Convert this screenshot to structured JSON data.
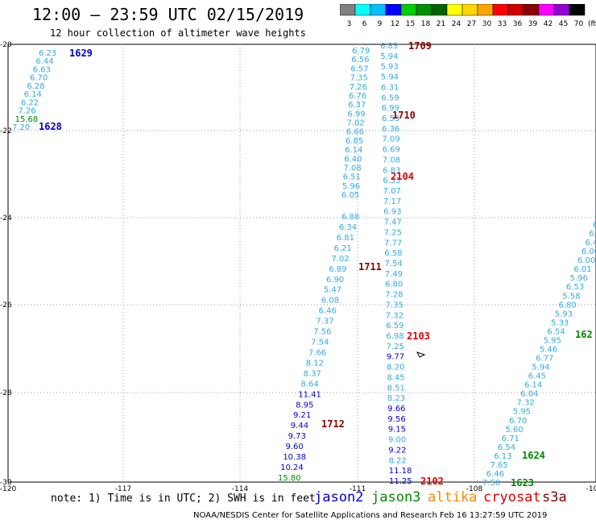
{
  "header": {
    "title": "12:00 – 23:59 UTC 02/15/2019",
    "subtitle": "12 hour collection of altimeter wave heights"
  },
  "colorbar": {
    "unit": "(ft)",
    "colors": [
      "#808080",
      "#00ffff",
      "#00bfff",
      "#0000ff",
      "#00cd00",
      "#009000",
      "#006400",
      "#ffff00",
      "#ffd700",
      "#ffa500",
      "#ff0000",
      "#cd0000",
      "#8b0000",
      "#ff00ff",
      "#9400d3",
      "#000000"
    ],
    "labels": [
      "3",
      "6",
      "9",
      "12",
      "15",
      "18",
      "21",
      "24",
      "27",
      "30",
      "33",
      "36",
      "39",
      "42",
      "45",
      "70"
    ]
  },
  "axes": {
    "lon_ticks": [
      "-120",
      "-117",
      "-114",
      "-111",
      "-108",
      "-10"
    ],
    "lat_ticks": [
      "-20",
      "-22",
      "-24",
      "-26",
      "-28",
      "-30"
    ]
  },
  "colors": {
    "light": "#33aadd",
    "blue": "#0000cc",
    "green": "#008800",
    "red": "#dd0000",
    "dark_red": "#880000"
  },
  "tracks": {
    "left_upper": [
      {
        "v": "6.23",
        "c": "light"
      },
      {
        "v": "6.44",
        "c": "light"
      },
      {
        "v": "6.63",
        "c": "light"
      },
      {
        "v": "6.70",
        "c": "light"
      },
      {
        "v": "6.28",
        "c": "light"
      },
      {
        "v": "6.14",
        "c": "light"
      },
      {
        "v": "6.22",
        "c": "light"
      },
      {
        "v": "7.26",
        "c": "light"
      },
      {
        "v": "15.68",
        "c": "green"
      },
      {
        "v": "7.20",
        "c": "light"
      }
    ],
    "left_long": [
      {
        "v": "6.88",
        "c": "light"
      },
      {
        "v": "6.34",
        "c": "light"
      },
      {
        "v": "6.81",
        "c": "light"
      },
      {
        "v": "6.21",
        "c": "light"
      },
      {
        "v": "7.02",
        "c": "light"
      },
      {
        "v": "6.89",
        "c": "light"
      },
      {
        "v": "6.90",
        "c": "light"
      },
      {
        "v": "5.47",
        "c": "light"
      },
      {
        "v": "6.08",
        "c": "light"
      },
      {
        "v": "6.46",
        "c": "light"
      },
      {
        "v": "7.37",
        "c": "light"
      },
      {
        "v": "7.56",
        "c": "light"
      },
      {
        "v": "7.54",
        "c": "light"
      },
      {
        "v": "7.66",
        "c": "light"
      },
      {
        "v": "8.12",
        "c": "light"
      },
      {
        "v": "8.37",
        "c": "light"
      },
      {
        "v": "8.64",
        "c": "light"
      },
      {
        "v": "11.41",
        "c": "blue"
      },
      {
        "v": "8.95",
        "c": "blue"
      },
      {
        "v": "9.21",
        "c": "blue"
      },
      {
        "v": "9.44",
        "c": "blue"
      },
      {
        "v": "9.73",
        "c": "blue"
      },
      {
        "v": "9.60",
        "c": "blue"
      },
      {
        "v": "10.38",
        "c": "blue"
      },
      {
        "v": "10.24",
        "c": "blue"
      },
      {
        "v": "15.80",
        "c": "green"
      }
    ],
    "center_a": [
      {
        "v": "6.79",
        "c": "light"
      },
      {
        "v": "6.56",
        "c": "light"
      },
      {
        "v": "6.57",
        "c": "light"
      },
      {
        "v": "7.35",
        "c": "light"
      },
      {
        "v": "7.26",
        "c": "light"
      },
      {
        "v": "6.76",
        "c": "light"
      },
      {
        "v": "6.37",
        "c": "light"
      },
      {
        "v": "6.99",
        "c": "light"
      },
      {
        "v": "7.02",
        "c": "light"
      },
      {
        "v": "6.66",
        "c": "light"
      },
      {
        "v": "6.85",
        "c": "light"
      },
      {
        "v": "6.14",
        "c": "light"
      },
      {
        "v": "6.40",
        "c": "light"
      },
      {
        "v": "7.08",
        "c": "light"
      },
      {
        "v": "6.51",
        "c": "light"
      },
      {
        "v": "5.96",
        "c": "light"
      },
      {
        "v": "6.05",
        "c": "light"
      }
    ],
    "center_b": [
      {
        "v": "6.83",
        "c": "light"
      },
      {
        "v": "5.94",
        "c": "light"
      },
      {
        "v": "5.93",
        "c": "light"
      },
      {
        "v": "5.94",
        "c": "light"
      },
      {
        "v": "6.31",
        "c": "light"
      },
      {
        "v": "6.59",
        "c": "light"
      },
      {
        "v": "6.99",
        "c": "light"
      },
      {
        "v": "6.53",
        "c": "light"
      },
      {
        "v": "6.36",
        "c": "light"
      },
      {
        "v": "7.09",
        "c": "light"
      },
      {
        "v": "6.69",
        "c": "light"
      },
      {
        "v": "7.08",
        "c": "light"
      },
      {
        "v": "6.83",
        "c": "light"
      },
      {
        "v": "6.53",
        "c": "light"
      },
      {
        "v": "7.07",
        "c": "light"
      },
      {
        "v": "7.17",
        "c": "light"
      },
      {
        "v": "6.93",
        "c": "light"
      },
      {
        "v": "7.47",
        "c": "light"
      },
      {
        "v": "7.25",
        "c": "light"
      },
      {
        "v": "7.77",
        "c": "light"
      },
      {
        "v": "6.58",
        "c": "light"
      },
      {
        "v": "7.54",
        "c": "light"
      },
      {
        "v": "7.49",
        "c": "light"
      },
      {
        "v": "6.80",
        "c": "light"
      },
      {
        "v": "7.28",
        "c": "light"
      },
      {
        "v": "7.35",
        "c": "light"
      },
      {
        "v": "7.32",
        "c": "light"
      },
      {
        "v": "6.59",
        "c": "light"
      },
      {
        "v": "6.98",
        "c": "light"
      },
      {
        "v": "7.25",
        "c": "light"
      },
      {
        "v": "9.77",
        "c": "blue"
      },
      {
        "v": "8.20",
        "c": "light"
      },
      {
        "v": "8.45",
        "c": "light"
      },
      {
        "v": "8.51",
        "c": "light"
      },
      {
        "v": "8.23",
        "c": "light"
      },
      {
        "v": "9.66",
        "c": "blue"
      },
      {
        "v": "9.56",
        "c": "blue"
      },
      {
        "v": "9.15",
        "c": "blue"
      },
      {
        "v": "9.00",
        "c": "light"
      },
      {
        "v": "9.22",
        "c": "blue"
      },
      {
        "v": "8.22",
        "c": "light"
      },
      {
        "v": "11.18",
        "c": "blue"
      },
      {
        "v": "11.25",
        "c": "blue"
      }
    ],
    "right": [
      {
        "v": "6.2",
        "c": "light"
      },
      {
        "v": "6.2",
        "c": "light"
      },
      {
        "v": "6.4",
        "c": "light"
      },
      {
        "v": "6.06",
        "c": "light"
      },
      {
        "v": "6.00",
        "c": "light"
      },
      {
        "v": "6.01",
        "c": "light"
      },
      {
        "v": "5.96",
        "c": "light"
      },
      {
        "v": "6.53",
        "c": "light"
      },
      {
        "v": "5.58",
        "c": "light"
      },
      {
        "v": "6.80",
        "c": "light"
      },
      {
        "v": "5.93",
        "c": "light"
      },
      {
        "v": "5.33",
        "c": "light"
      },
      {
        "v": "6.54",
        "c": "light"
      },
      {
        "v": "5.95",
        "c": "light"
      },
      {
        "v": "5.46",
        "c": "light"
      },
      {
        "v": "6.77",
        "c": "light"
      },
      {
        "v": "5.94",
        "c": "light"
      },
      {
        "v": "6.45",
        "c": "light"
      },
      {
        "v": "6.14",
        "c": "light"
      },
      {
        "v": "6.04",
        "c": "light"
      },
      {
        "v": "7.32",
        "c": "light"
      },
      {
        "v": "5.95",
        "c": "light"
      },
      {
        "v": "6.70",
        "c": "light"
      },
      {
        "v": "5.60",
        "c": "light"
      },
      {
        "v": "6.71",
        "c": "light"
      },
      {
        "v": "6.54",
        "c": "light"
      },
      {
        "v": "6.13",
        "c": "light"
      },
      {
        "v": "7.65",
        "c": "light"
      },
      {
        "v": "6.46",
        "c": "light"
      },
      {
        "v": "7.50",
        "c": "light"
      }
    ]
  },
  "pass_labels": [
    {
      "text": "1629",
      "c": "blue"
    },
    {
      "text": "1628",
      "c": "blue"
    },
    {
      "text": "1709",
      "c": "dark_red"
    },
    {
      "text": "1710",
      "c": "dark_red"
    },
    {
      "text": "2104",
      "c": "red"
    },
    {
      "text": "1711",
      "c": "dark_red"
    },
    {
      "text": "2103",
      "c": "red"
    },
    {
      "text": "1712",
      "c": "dark_red"
    },
    {
      "text": "2102",
      "c": "red"
    },
    {
      "text": "1624",
      "c": "green"
    },
    {
      "text": "1623",
      "c": "green"
    },
    {
      "text": "162",
      "c": "green"
    }
  ],
  "footer": {
    "note": "note: 1) Time is in UTC; 2) SWH is in feet",
    "legend": [
      {
        "text": "jason2",
        "color": "#0000cc"
      },
      {
        "text": "jason3",
        "color": "#008800"
      },
      {
        "text": "altika",
        "color": "#ff8800"
      },
      {
        "text": "cryosat",
        "color": "#dd0000"
      },
      {
        "text": "s3a",
        "color": "#880000"
      }
    ],
    "credit": "NOAA/NESDIS Center for Satellite Applications and Research    Feb 16 13:27:59 UTC 2019"
  }
}
